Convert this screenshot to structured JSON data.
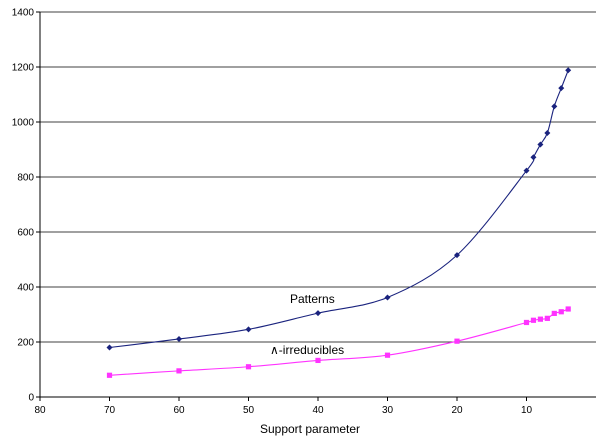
{
  "chart_data": {
    "type": "line",
    "title": "",
    "xlabel": "Support parameter",
    "ylabel": "",
    "xlim": [
      80,
      0
    ],
    "ylim": [
      0,
      1400
    ],
    "x_reversed": true,
    "grid": {
      "horizontal": true,
      "vertical": false
    },
    "x_ticks": [
      "80",
      "70",
      "60",
      "50",
      "40",
      "30",
      "20",
      "10"
    ],
    "x_tick_values": [
      80,
      70,
      60,
      50,
      40,
      30,
      20,
      10
    ],
    "y_ticks": [
      "0",
      "200",
      "400",
      "600",
      "800",
      "1000",
      "1200",
      "1400"
    ],
    "y_tick_values": [
      0,
      200,
      400,
      600,
      800,
      1000,
      1200,
      1400
    ],
    "series": [
      {
        "name": "Patterns",
        "color": "#1a237e",
        "marker": "diamond",
        "x": [
          70,
          60,
          50,
          40,
          30,
          20,
          10,
          9,
          8,
          7,
          6,
          5,
          4
        ],
        "y": [
          180,
          211,
          246,
          305,
          362,
          516,
          823,
          872,
          918,
          960,
          1057,
          1123,
          1188
        ]
      },
      {
        "name": "∧-irreducibles",
        "color": "#ff33ff",
        "marker": "square",
        "x": [
          70,
          60,
          50,
          40,
          30,
          20,
          10,
          9,
          8,
          7,
          6,
          5,
          4
        ],
        "y": [
          79,
          95,
          110,
          133,
          152,
          203,
          271,
          279,
          283,
          286,
          304,
          310,
          320
        ]
      }
    ],
    "annotations": [
      {
        "text": "Patterns",
        "series": 0
      },
      {
        "text": "∧-irreducibles",
        "series": 1
      }
    ]
  }
}
